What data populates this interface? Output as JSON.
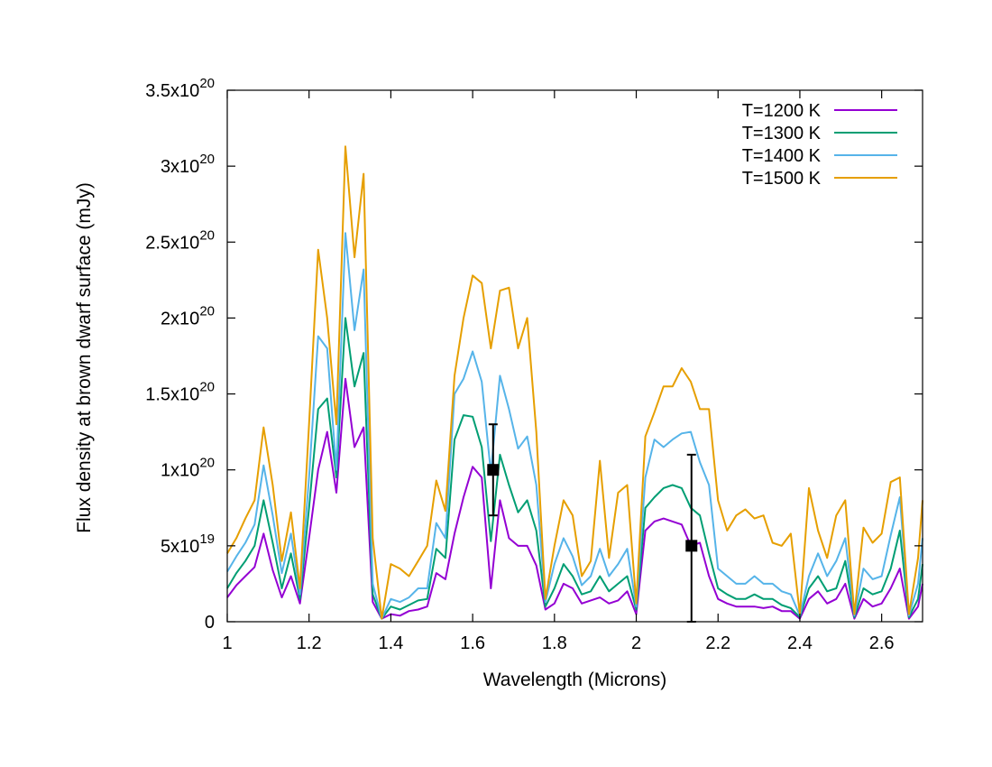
{
  "chart_data": {
    "type": "line",
    "xlabel": "Wavelength (Microns)",
    "ylabel": "Flux density at brown dwarf surface (mJy)",
    "xlim": [
      1.0,
      2.7
    ],
    "ylim": [
      0,
      3.5e+20
    ],
    "x_ticks": [
      {
        "value": 1.0,
        "label": "1"
      },
      {
        "value": 1.2,
        "label": "1.2"
      },
      {
        "value": 1.4,
        "label": "1.4"
      },
      {
        "value": 1.6,
        "label": "1.6"
      },
      {
        "value": 1.8,
        "label": "1.8"
      },
      {
        "value": 2.0,
        "label": "2"
      },
      {
        "value": 2.2,
        "label": "2.2"
      },
      {
        "value": 2.4,
        "label": "2.4"
      },
      {
        "value": 2.6,
        "label": "2.6"
      }
    ],
    "y_ticks": [
      {
        "value": 0,
        "mant": "0",
        "exp": ""
      },
      {
        "value": 5e+19,
        "mant": "5x10",
        "exp": "19"
      },
      {
        "value": 1e+20,
        "mant": "1x10",
        "exp": "20"
      },
      {
        "value": 1.5e+20,
        "mant": "1.5x10",
        "exp": "20"
      },
      {
        "value": 2e+20,
        "mant": "2x10",
        "exp": "20"
      },
      {
        "value": 2.5e+20,
        "mant": "2.5x10",
        "exp": "20"
      },
      {
        "value": 3e+20,
        "mant": "3x10",
        "exp": "20"
      },
      {
        "value": 3.5e+20,
        "mant": "3.5x10",
        "exp": "20"
      }
    ],
    "grid": false,
    "legend_position": "top-right",
    "units_note": "series values are in units of 1e20",
    "x": [
      1.0,
      1.0222,
      1.0444,
      1.0667,
      1.0889,
      1.1111,
      1.1333,
      1.1556,
      1.1778,
      1.2,
      1.2222,
      1.2444,
      1.2667,
      1.2889,
      1.3111,
      1.3333,
      1.3556,
      1.3778,
      1.4,
      1.4222,
      1.4444,
      1.4667,
      1.4889,
      1.5111,
      1.5333,
      1.5556,
      1.5778,
      1.6,
      1.6222,
      1.6444,
      1.6667,
      1.6889,
      1.7111,
      1.7333,
      1.7556,
      1.7778,
      1.8,
      1.8222,
      1.8444,
      1.8667,
      1.8889,
      1.9111,
      1.9333,
      1.9556,
      1.9778,
      2.0,
      2.0222,
      2.0444,
      2.0667,
      2.0889,
      2.1111,
      2.1333,
      2.1556,
      2.1778,
      2.2,
      2.2222,
      2.2444,
      2.2667,
      2.2889,
      2.3111,
      2.3333,
      2.3556,
      2.3778,
      2.4,
      2.4222,
      2.4444,
      2.4667,
      2.4889,
      2.5111,
      2.5333,
      2.5556,
      2.5778,
      2.6,
      2.6222,
      2.6444,
      2.6667,
      2.6889,
      2.7
    ],
    "series": [
      {
        "name": "T=1200 K",
        "color": "#9400d3",
        "values": [
          0.16,
          0.24,
          0.3,
          0.36,
          0.58,
          0.34,
          0.16,
          0.3,
          0.12,
          0.55,
          1.0,
          1.25,
          0.85,
          1.6,
          1.15,
          1.28,
          0.13,
          0.02,
          0.05,
          0.04,
          0.07,
          0.08,
          0.1,
          0.32,
          0.28,
          0.58,
          0.82,
          1.02,
          0.95,
          0.22,
          0.8,
          0.55,
          0.5,
          0.5,
          0.37,
          0.08,
          0.12,
          0.25,
          0.22,
          0.12,
          0.14,
          0.16,
          0.12,
          0.14,
          0.2,
          0.05,
          0.6,
          0.66,
          0.68,
          0.66,
          0.64,
          0.5,
          0.52,
          0.3,
          0.15,
          0.12,
          0.1,
          0.1,
          0.1,
          0.09,
          0.1,
          0.07,
          0.07,
          0.02,
          0.15,
          0.2,
          0.12,
          0.15,
          0.25,
          0.02,
          0.15,
          0.1,
          0.12,
          0.22,
          0.35,
          0.02,
          0.1,
          0.25
        ]
      },
      {
        "name": "T=1300 K",
        "color": "#009e73",
        "values": [
          0.22,
          0.32,
          0.4,
          0.5,
          0.8,
          0.52,
          0.22,
          0.45,
          0.15,
          0.75,
          1.4,
          1.47,
          0.95,
          2.0,
          1.55,
          1.77,
          0.18,
          0.02,
          0.1,
          0.08,
          0.11,
          0.14,
          0.15,
          0.48,
          0.42,
          1.2,
          1.36,
          1.35,
          1.15,
          0.53,
          1.1,
          0.9,
          0.72,
          0.8,
          0.6,
          0.1,
          0.22,
          0.38,
          0.3,
          0.18,
          0.2,
          0.3,
          0.2,
          0.25,
          0.3,
          0.08,
          0.75,
          0.82,
          0.88,
          0.9,
          0.88,
          0.75,
          0.7,
          0.45,
          0.22,
          0.18,
          0.15,
          0.15,
          0.18,
          0.15,
          0.15,
          0.11,
          0.09,
          0.03,
          0.22,
          0.3,
          0.2,
          0.22,
          0.4,
          0.03,
          0.22,
          0.18,
          0.2,
          0.35,
          0.6,
          0.03,
          0.15,
          0.38
        ]
      },
      {
        "name": "T=1400 K",
        "color": "#56b4e9",
        "values": [
          0.33,
          0.43,
          0.52,
          0.64,
          1.03,
          0.7,
          0.32,
          0.58,
          0.18,
          0.95,
          1.88,
          1.8,
          1.0,
          2.56,
          1.92,
          2.32,
          0.25,
          0.02,
          0.15,
          0.13,
          0.16,
          0.22,
          0.22,
          0.65,
          0.55,
          1.5,
          1.6,
          1.78,
          1.58,
          0.98,
          1.62,
          1.4,
          1.14,
          1.22,
          0.9,
          0.13,
          0.38,
          0.55,
          0.43,
          0.24,
          0.3,
          0.48,
          0.3,
          0.38,
          0.48,
          0.1,
          0.95,
          1.2,
          1.15,
          1.2,
          1.24,
          1.25,
          1.05,
          0.9,
          0.35,
          0.3,
          0.25,
          0.25,
          0.3,
          0.25,
          0.25,
          0.2,
          0.18,
          0.04,
          0.3,
          0.45,
          0.3,
          0.4,
          0.55,
          0.04,
          0.35,
          0.28,
          0.3,
          0.57,
          0.82,
          0.04,
          0.25,
          0.55
        ]
      },
      {
        "name": "T=1500 K",
        "color": "#e69f00",
        "values": [
          0.45,
          0.55,
          0.68,
          0.8,
          1.28,
          0.9,
          0.4,
          0.72,
          0.22,
          1.3,
          2.45,
          2.0,
          1.3,
          3.13,
          2.4,
          2.95,
          0.55,
          0.02,
          0.38,
          0.35,
          0.3,
          0.4,
          0.5,
          0.93,
          0.73,
          1.62,
          2.0,
          2.28,
          2.23,
          1.8,
          2.18,
          2.2,
          1.8,
          2.0,
          1.25,
          0.15,
          0.5,
          0.8,
          0.7,
          0.3,
          0.4,
          1.06,
          0.42,
          0.85,
          0.9,
          0.12,
          1.22,
          1.38,
          1.55,
          1.55,
          1.67,
          1.58,
          1.4,
          1.4,
          0.8,
          0.6,
          0.7,
          0.74,
          0.68,
          0.7,
          0.52,
          0.5,
          0.58,
          0.05,
          0.88,
          0.6,
          0.42,
          0.7,
          0.8,
          0.05,
          0.62,
          0.52,
          0.58,
          0.92,
          0.95,
          0.05,
          0.42,
          0.8
        ]
      }
    ],
    "observations": [
      {
        "x": 1.65,
        "y": 1e+20,
        "ylow": 7e+19,
        "yhigh": 1.3e+20
      },
      {
        "x": 2.135,
        "y": 5e+19,
        "ylow": 0.0,
        "yhigh": 1.1e+20
      }
    ]
  }
}
